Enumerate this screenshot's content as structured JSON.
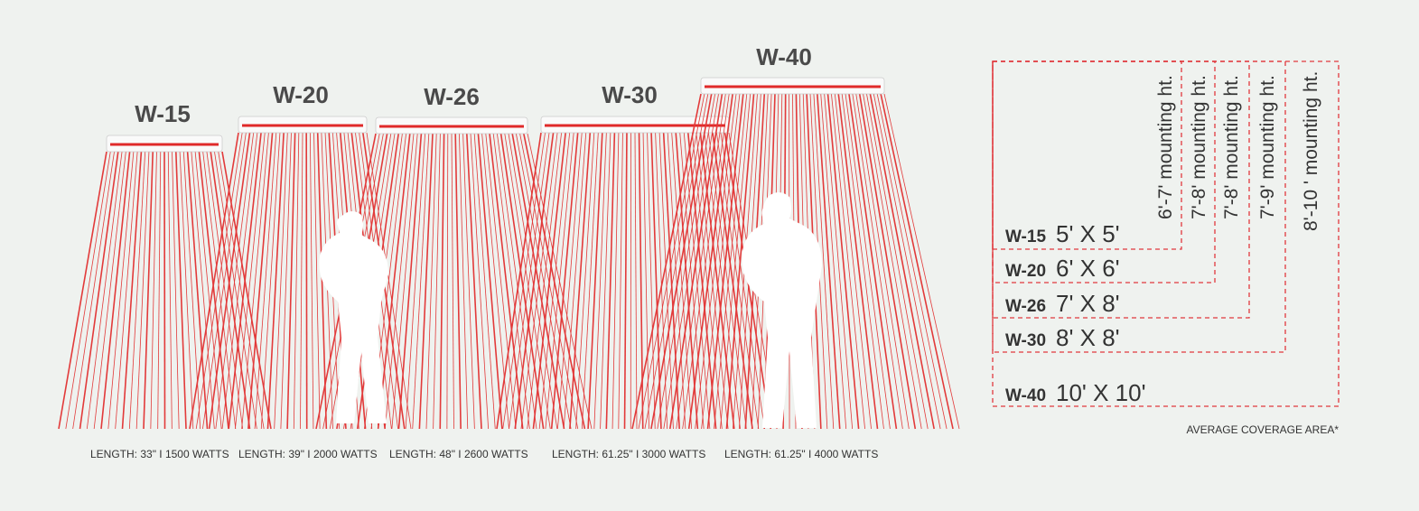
{
  "heaters": [
    {
      "name": "W-15",
      "spec": "LENGTH: 33\" I 1500 WATTS"
    },
    {
      "name": "W-20",
      "spec": "LENGTH: 39\" I 2000 WATTS"
    },
    {
      "name": "W-26",
      "spec": "LENGTH: 48\" I 2600 WATTS"
    },
    {
      "name": "W-30",
      "spec": "LENGTH: 61.25\" I 3000 WATTS"
    },
    {
      "name": "W-40",
      "spec": "LENGTH: 61.25\" I 4000 WATTS"
    }
  ],
  "coverage": [
    {
      "name": "W-15",
      "area": "5' X 5'",
      "mounting": "6'-7' mounting ht."
    },
    {
      "name": "W-20",
      "area": "6' X 6'",
      "mounting": "7'-8' mounting ht."
    },
    {
      "name": "W-26",
      "area": "7' X 8'",
      "mounting": "7'-8' mounting ht."
    },
    {
      "name": "W-30",
      "area": "8' X 8'",
      "mounting": "7'-9' mounting ht."
    },
    {
      "name": "W-40",
      "area": "10' X 10'",
      "mounting": "8'-10 ' mounting ht."
    }
  ],
  "footnote": "AVERAGE COVERAGE AREA*"
}
